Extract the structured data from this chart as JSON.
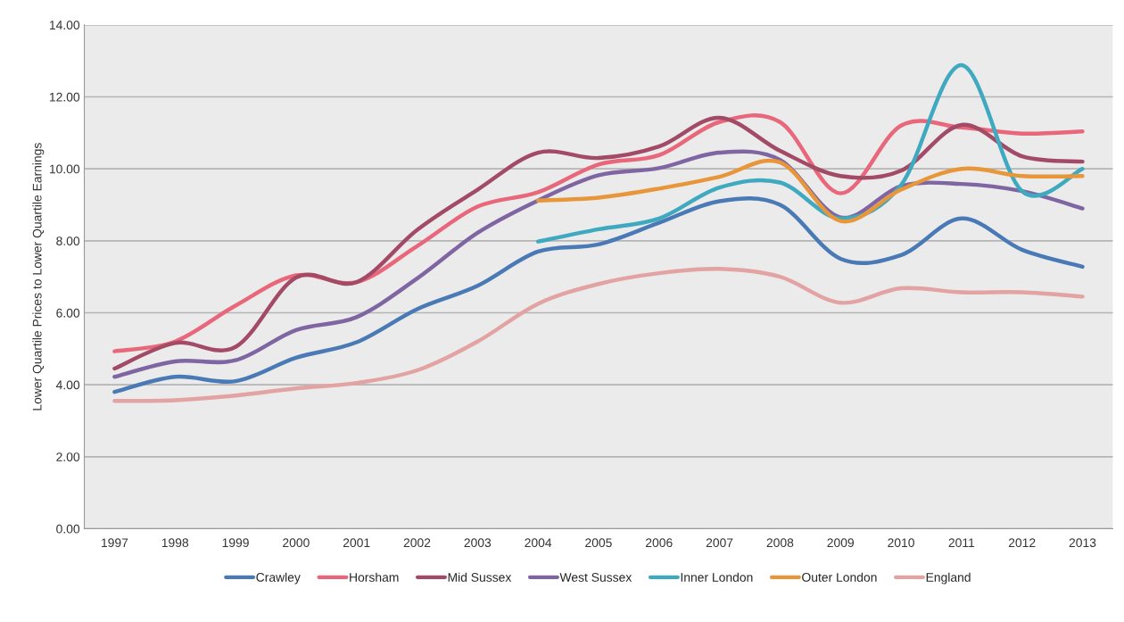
{
  "chart_data": {
    "type": "line",
    "ylabel": "Lower Quartile Prices to Lower Quartile Earnings",
    "categories": [
      "1997",
      "1998",
      "1999",
      "2000",
      "2001",
      "2002",
      "2003",
      "2004",
      "2005",
      "2006",
      "2007",
      "2008",
      "2009",
      "2010",
      "2011",
      "2012",
      "2013"
    ],
    "series": [
      {
        "name": "Crawley",
        "color": "#4a7ab5",
        "values": [
          3.8,
          4.22,
          4.1,
          4.75,
          5.18,
          6.1,
          6.75,
          7.7,
          7.9,
          8.5,
          9.1,
          9.0,
          7.5,
          7.6,
          8.62,
          7.75,
          7.28
        ]
      },
      {
        "name": "Horsham",
        "color": "#e8677a",
        "values": [
          4.93,
          5.2,
          6.2,
          7.04,
          6.85,
          7.85,
          8.95,
          9.35,
          10.12,
          10.38,
          11.3,
          11.3,
          9.32,
          11.2,
          11.15,
          10.98,
          11.04
        ]
      },
      {
        "name": "Mid Sussex",
        "color": "#a34a67",
        "values": [
          4.45,
          5.16,
          5.05,
          6.98,
          6.85,
          8.3,
          9.42,
          10.45,
          10.3,
          10.62,
          11.42,
          10.5,
          9.8,
          9.95,
          11.22,
          10.35,
          10.2
        ]
      },
      {
        "name": "West Sussex",
        "color": "#7f66a3",
        "values": [
          4.22,
          4.65,
          4.68,
          5.52,
          5.88,
          6.95,
          8.22,
          9.12,
          9.82,
          10.02,
          10.45,
          10.25,
          8.65,
          9.52,
          9.58,
          9.38,
          8.9
        ]
      },
      {
        "name": "Inner London",
        "color": "#3fa9bf",
        "values": [
          null,
          null,
          null,
          null,
          null,
          null,
          null,
          7.98,
          8.32,
          8.62,
          9.48,
          9.62,
          8.62,
          9.55,
          12.88,
          9.38,
          10.0
        ]
      },
      {
        "name": "Outer London",
        "color": "#e8963a",
        "values": [
          null,
          null,
          null,
          null,
          null,
          null,
          null,
          9.12,
          9.2,
          9.45,
          9.78,
          10.18,
          8.55,
          9.42,
          10.0,
          9.8,
          9.8
        ]
      },
      {
        "name": "England",
        "color": "#e3a3a3",
        "values": [
          3.55,
          3.57,
          3.7,
          3.9,
          4.05,
          4.4,
          5.2,
          6.25,
          6.8,
          7.1,
          7.22,
          7.0,
          6.28,
          6.68,
          6.57,
          6.57,
          6.45
        ]
      }
    ],
    "ylim": [
      0,
      14
    ],
    "yticks": [
      {
        "value": 0,
        "label": "0.00"
      },
      {
        "value": 2,
        "label": "2.00"
      },
      {
        "value": 4,
        "label": "4.00"
      },
      {
        "value": 6,
        "label": "6.00"
      },
      {
        "value": 8,
        "label": "8.00"
      },
      {
        "value": 10,
        "label": "10.00"
      },
      {
        "value": 12,
        "label": "12.00"
      },
      {
        "value": 14,
        "label": "14.00"
      }
    ],
    "grid": "y",
    "legend": "bottom",
    "marker": "none",
    "line_style": "solid"
  }
}
